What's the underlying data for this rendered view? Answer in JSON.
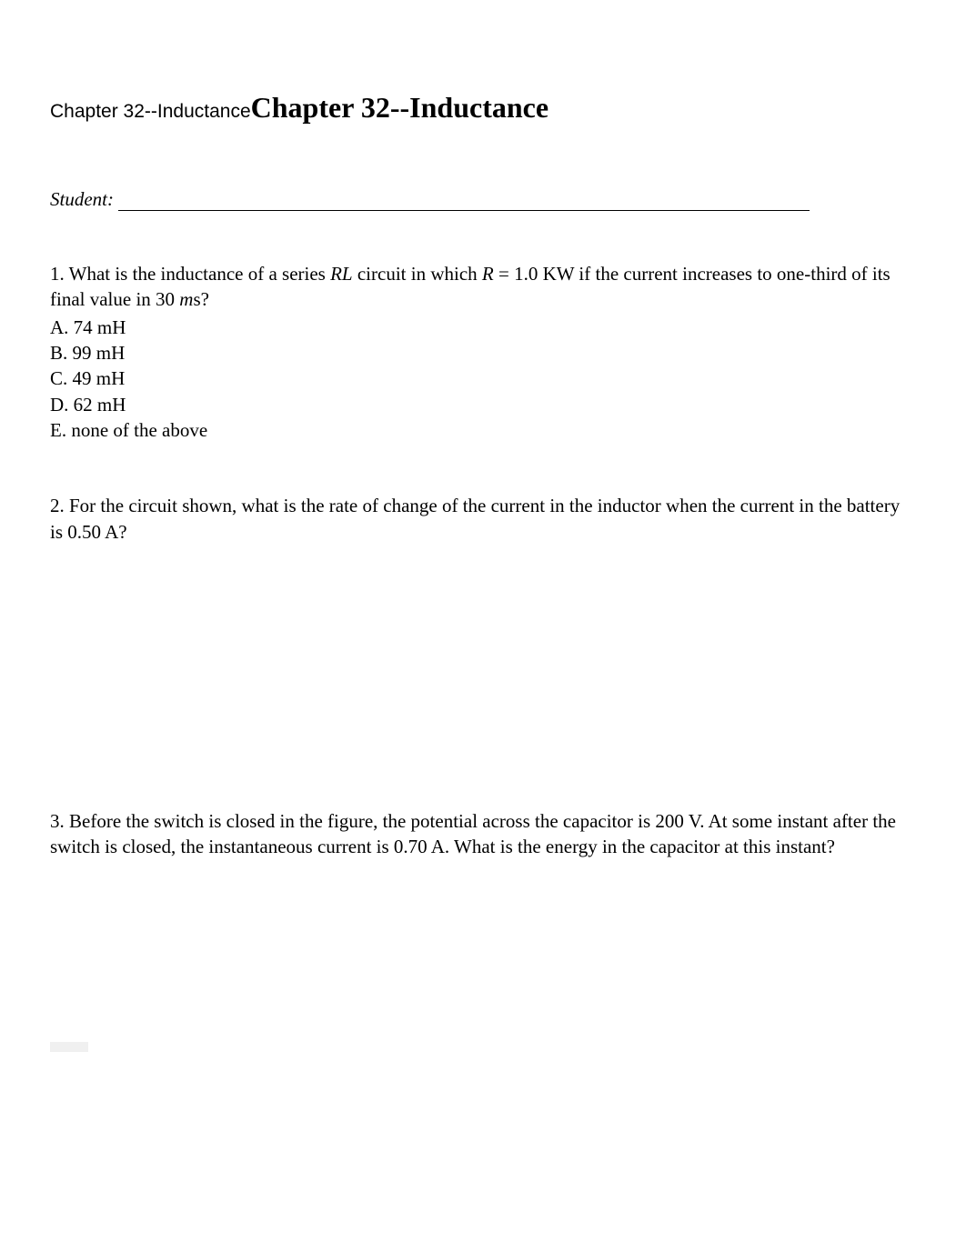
{
  "heading": {
    "small": "Chapter 32--Inductance",
    "large": "Chapter 32--Inductance"
  },
  "student": {
    "label": "Student:"
  },
  "q1": {
    "prefix": "1. What is the inductance of a series ",
    "rl": "RL",
    "mid1": " circuit in which ",
    "r": "R",
    "mid2": " = 1.0 KW if the current increases to one-third of its final value in 30 ",
    "m": "m",
    "suffix": "s?",
    "options": {
      "a": "A. 74 mH",
      "b": "B. 99 mH",
      "c": "C. 49 mH",
      "d": "D. 62 mH",
      "e": "E. none of the above"
    }
  },
  "q2": {
    "text": "2. For the circuit shown, what is the rate of change of the current in the inductor when the current in the battery is 0.50 A?"
  },
  "q3": {
    "text": "3. Before the switch is closed in the figure, the potential across the capacitor is 200 V. At some instant after the switch is closed, the instantaneous current is 0.70 A. What is the energy in the capacitor at this instant?"
  }
}
